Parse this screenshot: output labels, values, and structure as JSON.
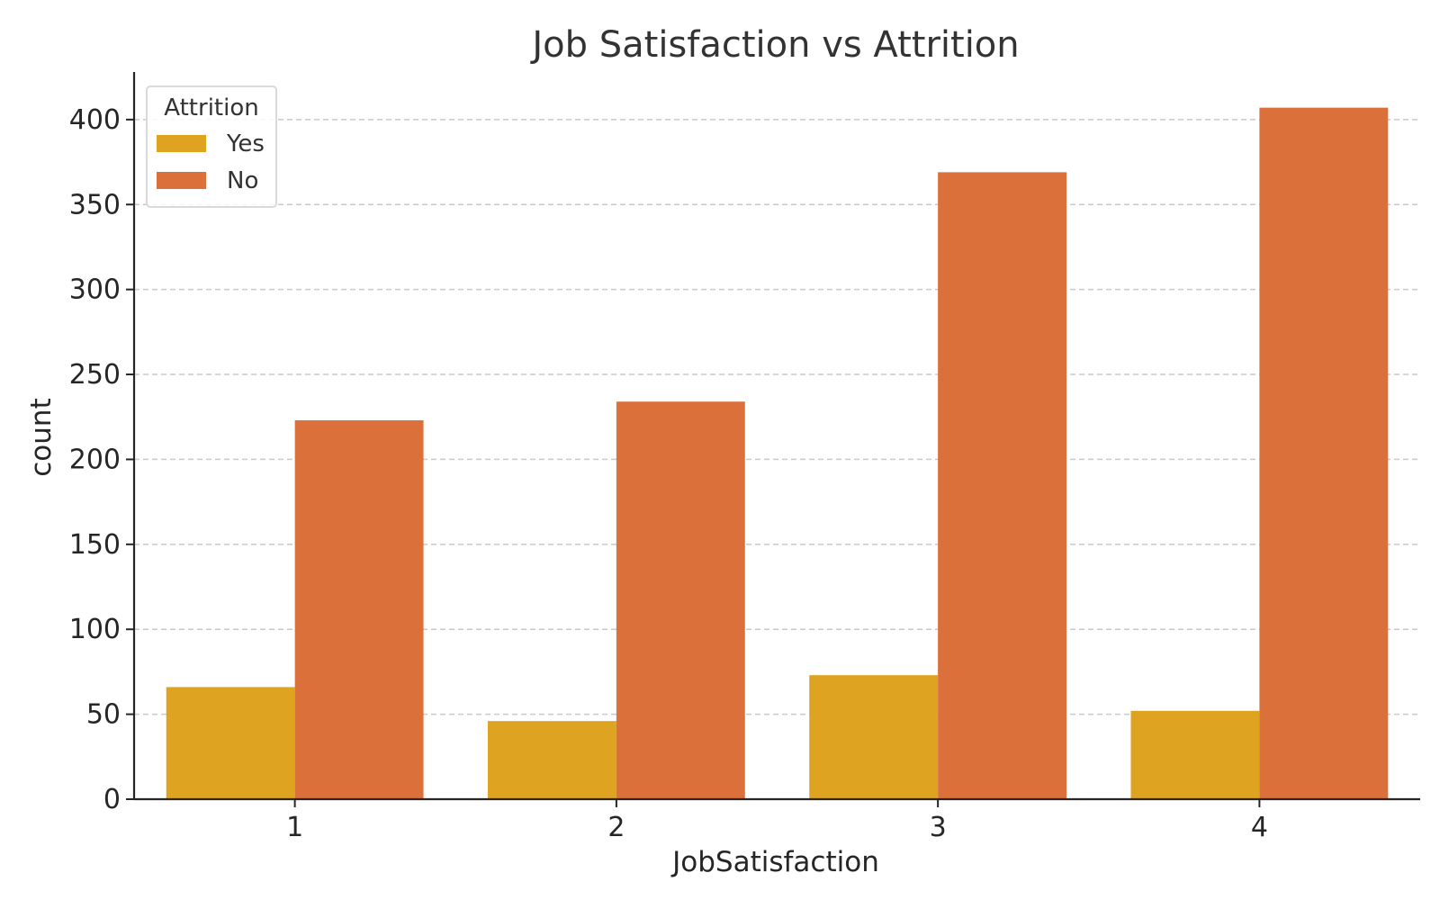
{
  "chart_data": {
    "type": "bar",
    "title": "Job Satisfaction vs Attrition",
    "xlabel": "JobSatisfaction",
    "ylabel": "count",
    "categories": [
      "1",
      "2",
      "3",
      "4"
    ],
    "series": [
      {
        "name": "Yes",
        "color": "#dea421",
        "values": [
          66,
          46,
          73,
          52
        ]
      },
      {
        "name": "No",
        "color": "#db703a",
        "values": [
          223,
          234,
          369,
          407
        ]
      }
    ],
    "ylim": [
      0,
      428
    ],
    "yticks": [
      0,
      50,
      100,
      150,
      200,
      250,
      300,
      350,
      400
    ],
    "grid": "y-dashed",
    "legend": {
      "title": "Attrition",
      "placement": "top-left"
    }
  }
}
